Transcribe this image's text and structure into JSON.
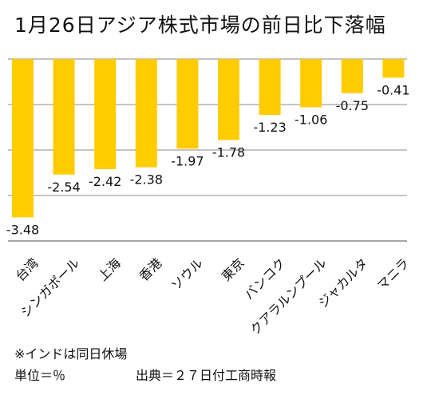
{
  "chart_data": {
    "type": "bar",
    "title": "1月26日アジア株式市場の前日比下落幅",
    "categories": [
      "台湾",
      "シンガポール",
      "上海",
      "香港",
      "ソウル",
      "東京",
      "バンコク",
      "クアラルンプール",
      "ジャカルタ",
      "マニラ"
    ],
    "values": [
      -3.48,
      -2.54,
      -2.42,
      -2.38,
      -1.97,
      -1.78,
      -1.23,
      -1.06,
      -0.75,
      -0.41
    ],
    "value_labels": [
      "-3.48",
      "-2.54",
      "-2.42",
      "-2.38",
      "-1.97",
      "-1.78",
      "-1.23",
      "-1.06",
      "-0.75",
      "-0.41"
    ],
    "ylim": [
      -4,
      0
    ],
    "grid": true,
    "bar_color": "#FFCC00",
    "grid_color": "#888888"
  },
  "notes": {
    "closed": "※インドは同日休場",
    "unit": "単位＝％",
    "source": "出典＝２７日付工商時報"
  }
}
